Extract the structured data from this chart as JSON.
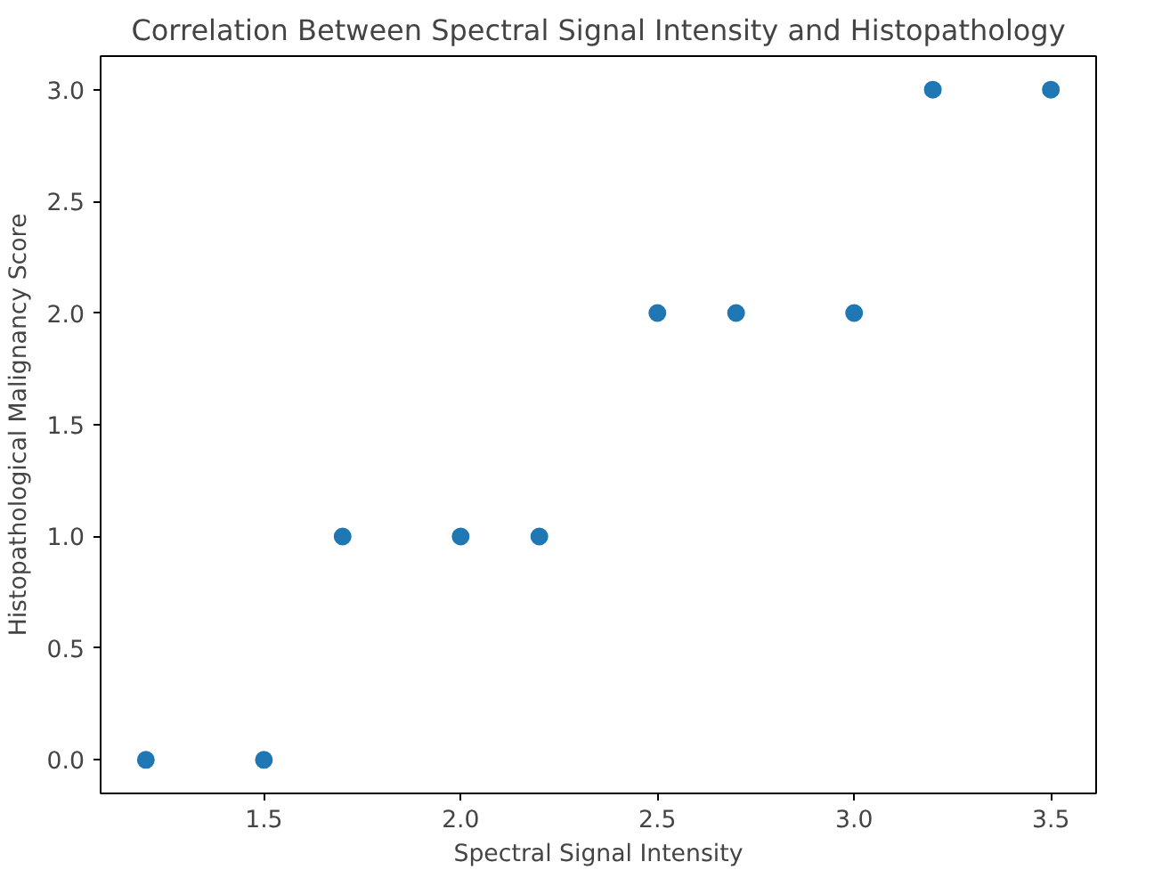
{
  "chart_data": {
    "type": "scatter",
    "title": "Correlation Between Spectral Signal Intensity and Histopathology",
    "xlabel": "Spectral Signal Intensity",
    "ylabel": "Histopathological Malignancy Score",
    "x": [
      1.2,
      1.5,
      1.7,
      2.0,
      2.2,
      2.5,
      2.7,
      3.0,
      3.2,
      3.5
    ],
    "values": [
      0,
      0,
      1,
      1,
      1,
      2,
      2,
      2,
      3,
      3
    ],
    "color": "#1f77b4",
    "marker": "circle",
    "xlim": [
      1.085,
      3.615
    ],
    "ylim": [
      -0.15,
      3.15
    ],
    "xticks": [
      1.5,
      {
        "value": 2,
        "label": "2.0"
      },
      2.5,
      {
        "value": 3,
        "label": "3.0"
      },
      3.5
    ],
    "yticks": [
      {
        "value": 0,
        "label": "0.0"
      },
      0.5,
      {
        "value": 1,
        "label": "1.0"
      },
      1.5,
      {
        "value": 2,
        "label": "2.0"
      },
      2.5,
      {
        "value": 3,
        "label": "3.0"
      }
    ],
    "grid": false
  }
}
